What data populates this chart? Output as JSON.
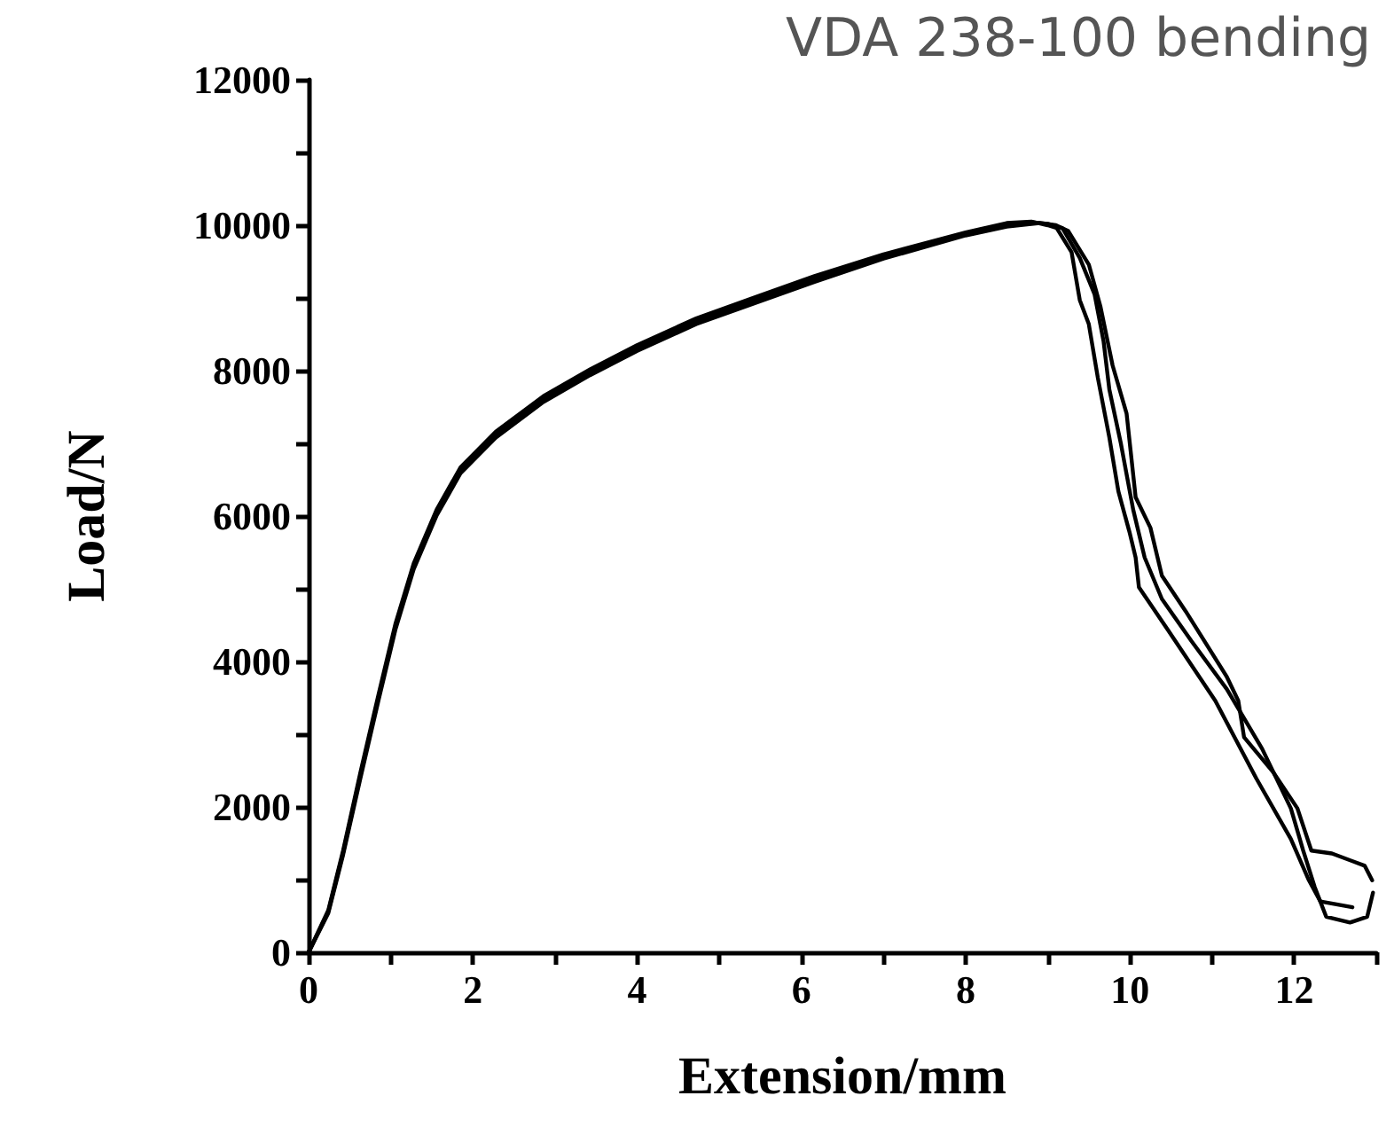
{
  "chart_data": {
    "type": "line",
    "title": "VDA 238-100 bending",
    "xlabel": "Extension/mm",
    "ylabel": "Load/N",
    "xlim": [
      0,
      13
    ],
    "ylim": [
      0,
      12000
    ],
    "xticks": [
      0,
      {
        "value": 1,
        "label": null
      },
      2,
      {
        "value": 3,
        "label": null
      },
      4,
      {
        "value": 5,
        "label": null
      },
      6,
      {
        "value": 7,
        "label": null
      },
      8,
      {
        "value": 9,
        "label": null
      },
      10,
      {
        "value": 11,
        "label": null
      },
      12,
      {
        "value": 13,
        "label": null
      }
    ],
    "yticks": [
      0,
      {
        "value": 1000,
        "label": null
      },
      2000,
      {
        "value": 3000,
        "label": null
      },
      4000,
      {
        "value": 5000,
        "label": null
      },
      6000,
      {
        "value": 7000,
        "label": null
      },
      8000,
      {
        "value": 9000,
        "label": null
      },
      10000,
      {
        "value": 11000,
        "label": null
      },
      12000
    ],
    "grid": false,
    "marker": "none",
    "line_style": "solid",
    "series": [
      {
        "color": "#000000",
        "x": [
          0,
          0.24,
          0.42,
          0.63,
          0.85,
          1.06,
          1.28,
          1.56,
          1.85,
          2.28,
          2.86,
          3.43,
          4.0,
          4.72,
          5.44,
          6.16,
          7,
          8,
          8.5,
          8.8,
          9.0,
          9.11,
          9.29,
          9.39,
          9.5,
          9.61,
          9.75,
          9.86,
          10.0,
          10.07,
          10.11,
          10.46,
          11.04,
          11.54,
          11.96,
          12.18,
          12.32,
          12.71
        ],
        "values": [
          0,
          580,
          1400,
          2470,
          3540,
          4530,
          5350,
          6090,
          6670,
          7160,
          7650,
          8020,
          8350,
          8720,
          9010,
          9300,
          9600,
          9900,
          10030,
          10050,
          10000,
          9960,
          9630,
          8970,
          8640,
          7900,
          7080,
          6340,
          5760,
          5430,
          5020,
          4440,
          3460,
          2390,
          1560,
          990,
          700,
          620
        ]
      },
      {
        "color": "#000000",
        "x": [
          0,
          0.24,
          0.42,
          0.63,
          0.85,
          1.06,
          1.28,
          1.56,
          1.85,
          2.28,
          2.86,
          3.43,
          4.0,
          4.72,
          5.44,
          6.16,
          7,
          8,
          8.5,
          8.8,
          9.0,
          9.18,
          9.39,
          9.57,
          9.68,
          9.75,
          9.89,
          10.04,
          10.18,
          10.39,
          10.75,
          11.18,
          11.61,
          11.96,
          12.11,
          12.25,
          12.39,
          12.68,
          12.89,
          12.96
        ],
        "values": [
          0,
          560,
          1370,
          2430,
          3500,
          4490,
          5310,
          6050,
          6630,
          7120,
          7610,
          7980,
          8310,
          8680,
          8970,
          9260,
          9570,
          9880,
          10000,
          10040,
          10020,
          9960,
          9550,
          9050,
          8400,
          7740,
          7000,
          6090,
          5430,
          4860,
          4280,
          3620,
          2800,
          1980,
          1400,
          900,
          490,
          410,
          490,
          820
        ]
      },
      {
        "color": "#000000",
        "x": [
          0,
          0.24,
          0.42,
          0.63,
          0.85,
          1.06,
          1.28,
          1.56,
          1.85,
          2.28,
          2.86,
          3.43,
          4.0,
          4.72,
          5.44,
          6.16,
          7,
          8,
          8.5,
          8.9,
          9.1,
          9.25,
          9.5,
          9.64,
          9.79,
          9.96,
          10.07,
          10.25,
          10.39,
          10.68,
          11.18,
          11.32,
          11.39,
          11.75,
          12.04,
          12.21,
          12.46,
          12.86,
          12.95
        ],
        "values": [
          0,
          540,
          1340,
          2390,
          3460,
          4450,
          5270,
          6010,
          6590,
          7080,
          7570,
          7940,
          8270,
          8640,
          8930,
          9220,
          9540,
          9860,
          9980,
          10030,
          10000,
          9920,
          9460,
          8890,
          8070,
          7410,
          6260,
          5840,
          5180,
          4690,
          3790,
          3460,
          2960,
          2470,
          1980,
          1400,
          1360,
          1190,
          990
        ]
      }
    ]
  }
}
